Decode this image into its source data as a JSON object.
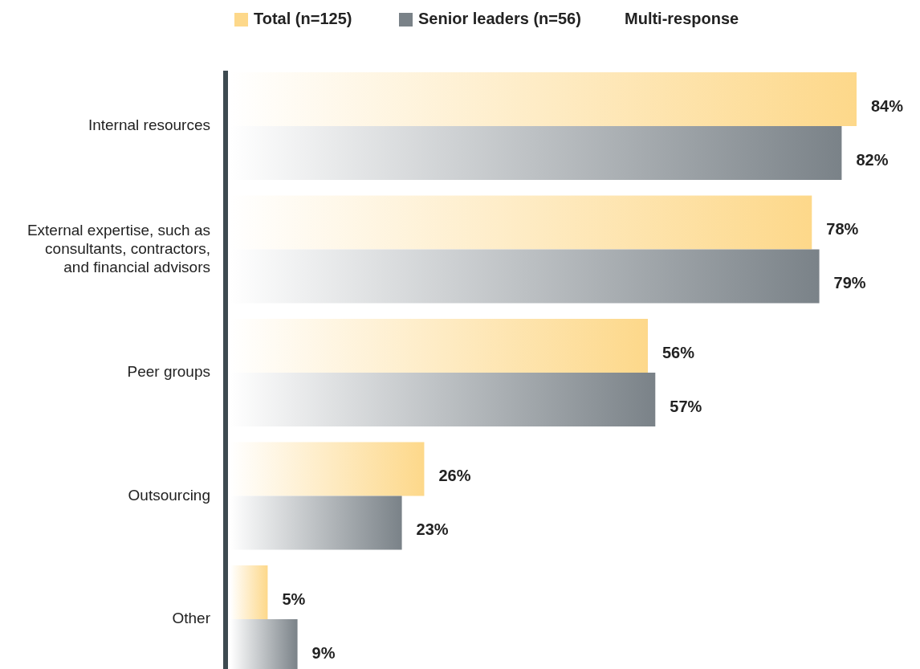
{
  "chart_data": {
    "type": "bar",
    "orientation": "horizontal",
    "categories": [
      "Internal resources",
      "External expertise, such as consultants, contractors, and financial advisors",
      "Peer groups",
      "Outsourcing",
      "Other"
    ],
    "series": [
      {
        "name": "Total (n=125)",
        "color": "#fdd88a",
        "values": [
          84,
          78,
          56,
          26,
          5
        ],
        "value_labels": [
          "84%",
          "78%",
          "56%",
          "26%",
          "5%"
        ]
      },
      {
        "name": "Senior leaders (n=56)",
        "color": "#7a8288",
        "values": [
          82,
          79,
          57,
          23,
          9
        ],
        "value_labels": [
          "82%",
          "79%",
          "57%",
          "23%",
          "9%"
        ]
      }
    ],
    "legend": "top",
    "annotations": [
      "Multi-response"
    ]
  }
}
